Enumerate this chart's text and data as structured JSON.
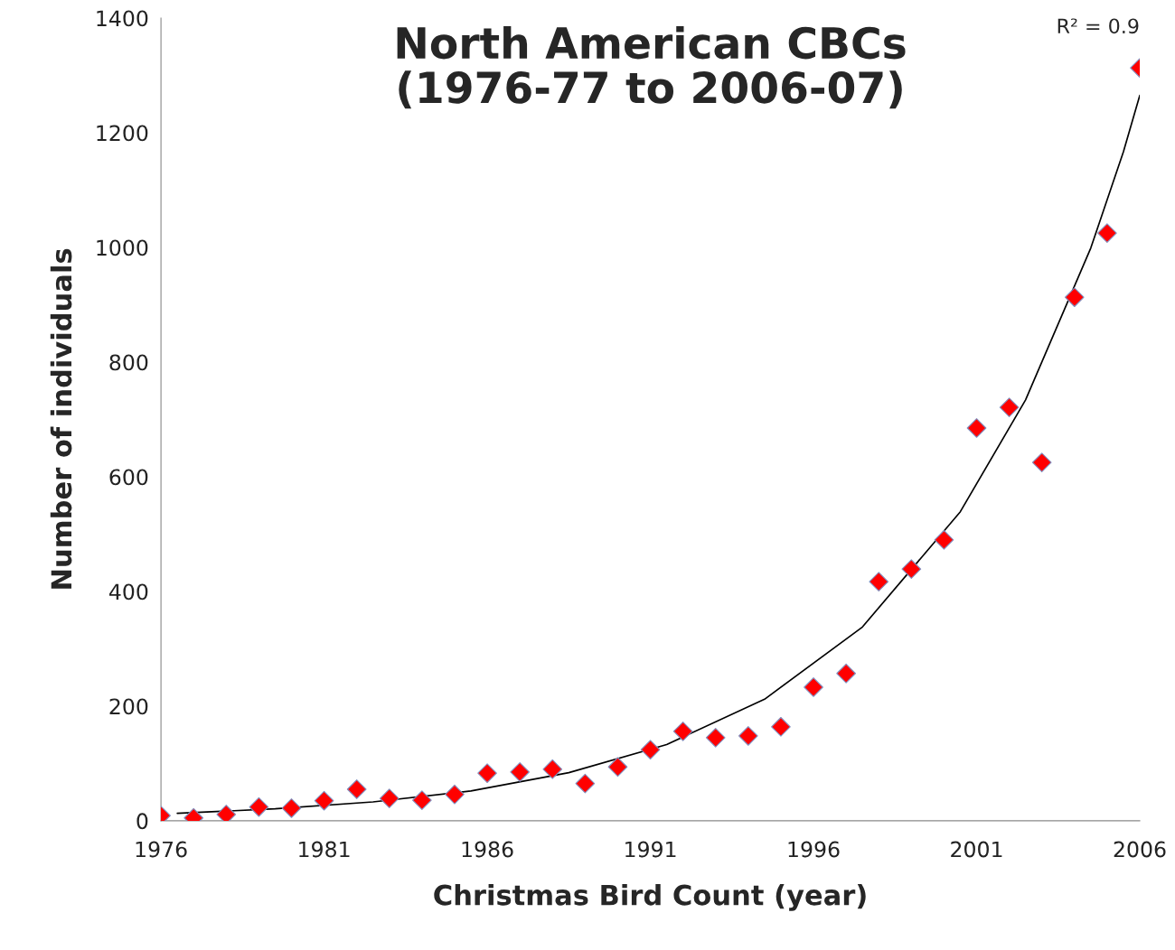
{
  "chart_data": {
    "type": "scatter",
    "title": "North American CBCs\n(1976-77 to 2006-07)",
    "xlabel": "Christmas Bird Count (year)",
    "ylabel": "Number of individuals",
    "annotations": [
      "R² = 0.9"
    ],
    "xlim": [
      1976,
      2006
    ],
    "xticks": [
      1976,
      1981,
      1986,
      1991,
      1996,
      2001,
      2006
    ],
    "ylim": [
      0,
      1400
    ],
    "yticks": [
      0,
      200,
      400,
      600,
      800,
      1000,
      1200,
      1400
    ],
    "grid": false,
    "legend": false,
    "series": [
      {
        "color": "#ff0000",
        "marker": "diamond",
        "x": [
          1976,
          1977,
          1978,
          1979,
          1980,
          1981,
          1982,
          1983,
          1984,
          1985,
          1986,
          1987,
          1988,
          1989,
          1990,
          1991,
          1992,
          1993,
          1994,
          1995,
          1996,
          1997,
          1998,
          1999,
          2000,
          2001,
          2002,
          2003,
          2004,
          2005,
          2006
        ],
        "values": [
          9,
          5,
          11,
          24,
          22,
          35,
          55,
          39,
          36,
          46,
          83,
          85,
          90,
          65,
          94,
          124,
          156,
          145,
          148,
          164,
          233,
          257,
          417,
          439,
          490,
          685,
          721,
          625,
          913,
          1025,
          1313
        ]
      },
      {
        "type": "line",
        "color": "#000000",
        "marker": "none",
        "line_style": "solid",
        "x": [
          1976.5,
          1979.5,
          1982.5,
          1985.5,
          1988.5,
          1991.5,
          1994.5,
          1997.5,
          2000.5,
          2002.5,
          2004.5,
          2005.5,
          2006
        ],
        "values": [
          13,
          21,
          33,
          52,
          84,
          133,
          212,
          338,
          539,
          734,
          999,
          1167,
          1265
        ]
      }
    ]
  }
}
